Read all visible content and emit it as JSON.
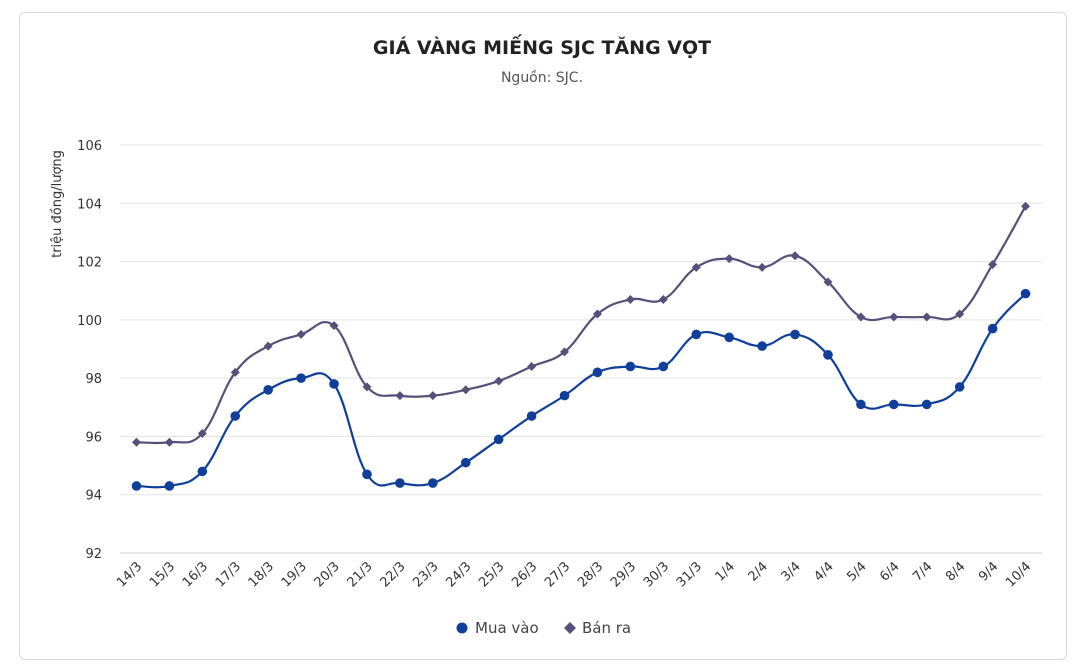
{
  "chart_data": {
    "type": "line",
    "title": "GIÁ VÀNG MIẾNG SJC TĂNG VỌT",
    "subtitle": "Nguồn: SJC.",
    "ylabel": "triệu đồng/lượng",
    "xlabel": "",
    "ylim": [
      92,
      106
    ],
    "yticks": [
      92,
      94,
      96,
      98,
      100,
      102,
      104,
      106
    ],
    "grid": true,
    "legend_position": "bottom",
    "categories": [
      "14/3",
      "15/3",
      "16/3",
      "17/3",
      "18/3",
      "19/3",
      "20/3",
      "21/3",
      "22/3",
      "23/3",
      "24/3",
      "25/3",
      "26/3",
      "27/3",
      "28/3",
      "29/3",
      "30/3",
      "31/3",
      "1/4",
      "2/4",
      "3/4",
      "4/4",
      "5/4",
      "6/4",
      "7/4",
      "8/4",
      "9/4",
      "10/4"
    ],
    "series": [
      {
        "name": "Mua vào",
        "color": "#0f3f99",
        "marker": "circle",
        "values": [
          94.3,
          94.3,
          94.8,
          96.7,
          97.6,
          98.0,
          97.8,
          94.7,
          94.4,
          94.4,
          95.1,
          95.9,
          96.7,
          97.4,
          98.2,
          98.4,
          98.4,
          99.5,
          99.4,
          99.1,
          99.5,
          98.8,
          97.1,
          97.1,
          97.1,
          97.7,
          99.7,
          100.9
        ]
      },
      {
        "name": "Bán ra",
        "color": "#55517a",
        "marker": "diamond",
        "values": [
          95.8,
          95.8,
          96.1,
          98.2,
          99.1,
          99.5,
          99.8,
          97.7,
          97.4,
          97.4,
          97.6,
          97.9,
          98.4,
          98.9,
          100.2,
          100.7,
          100.7,
          101.8,
          102.1,
          101.8,
          102.2,
          101.3,
          100.1,
          100.1,
          100.1,
          100.2,
          101.9,
          103.9
        ]
      }
    ]
  }
}
